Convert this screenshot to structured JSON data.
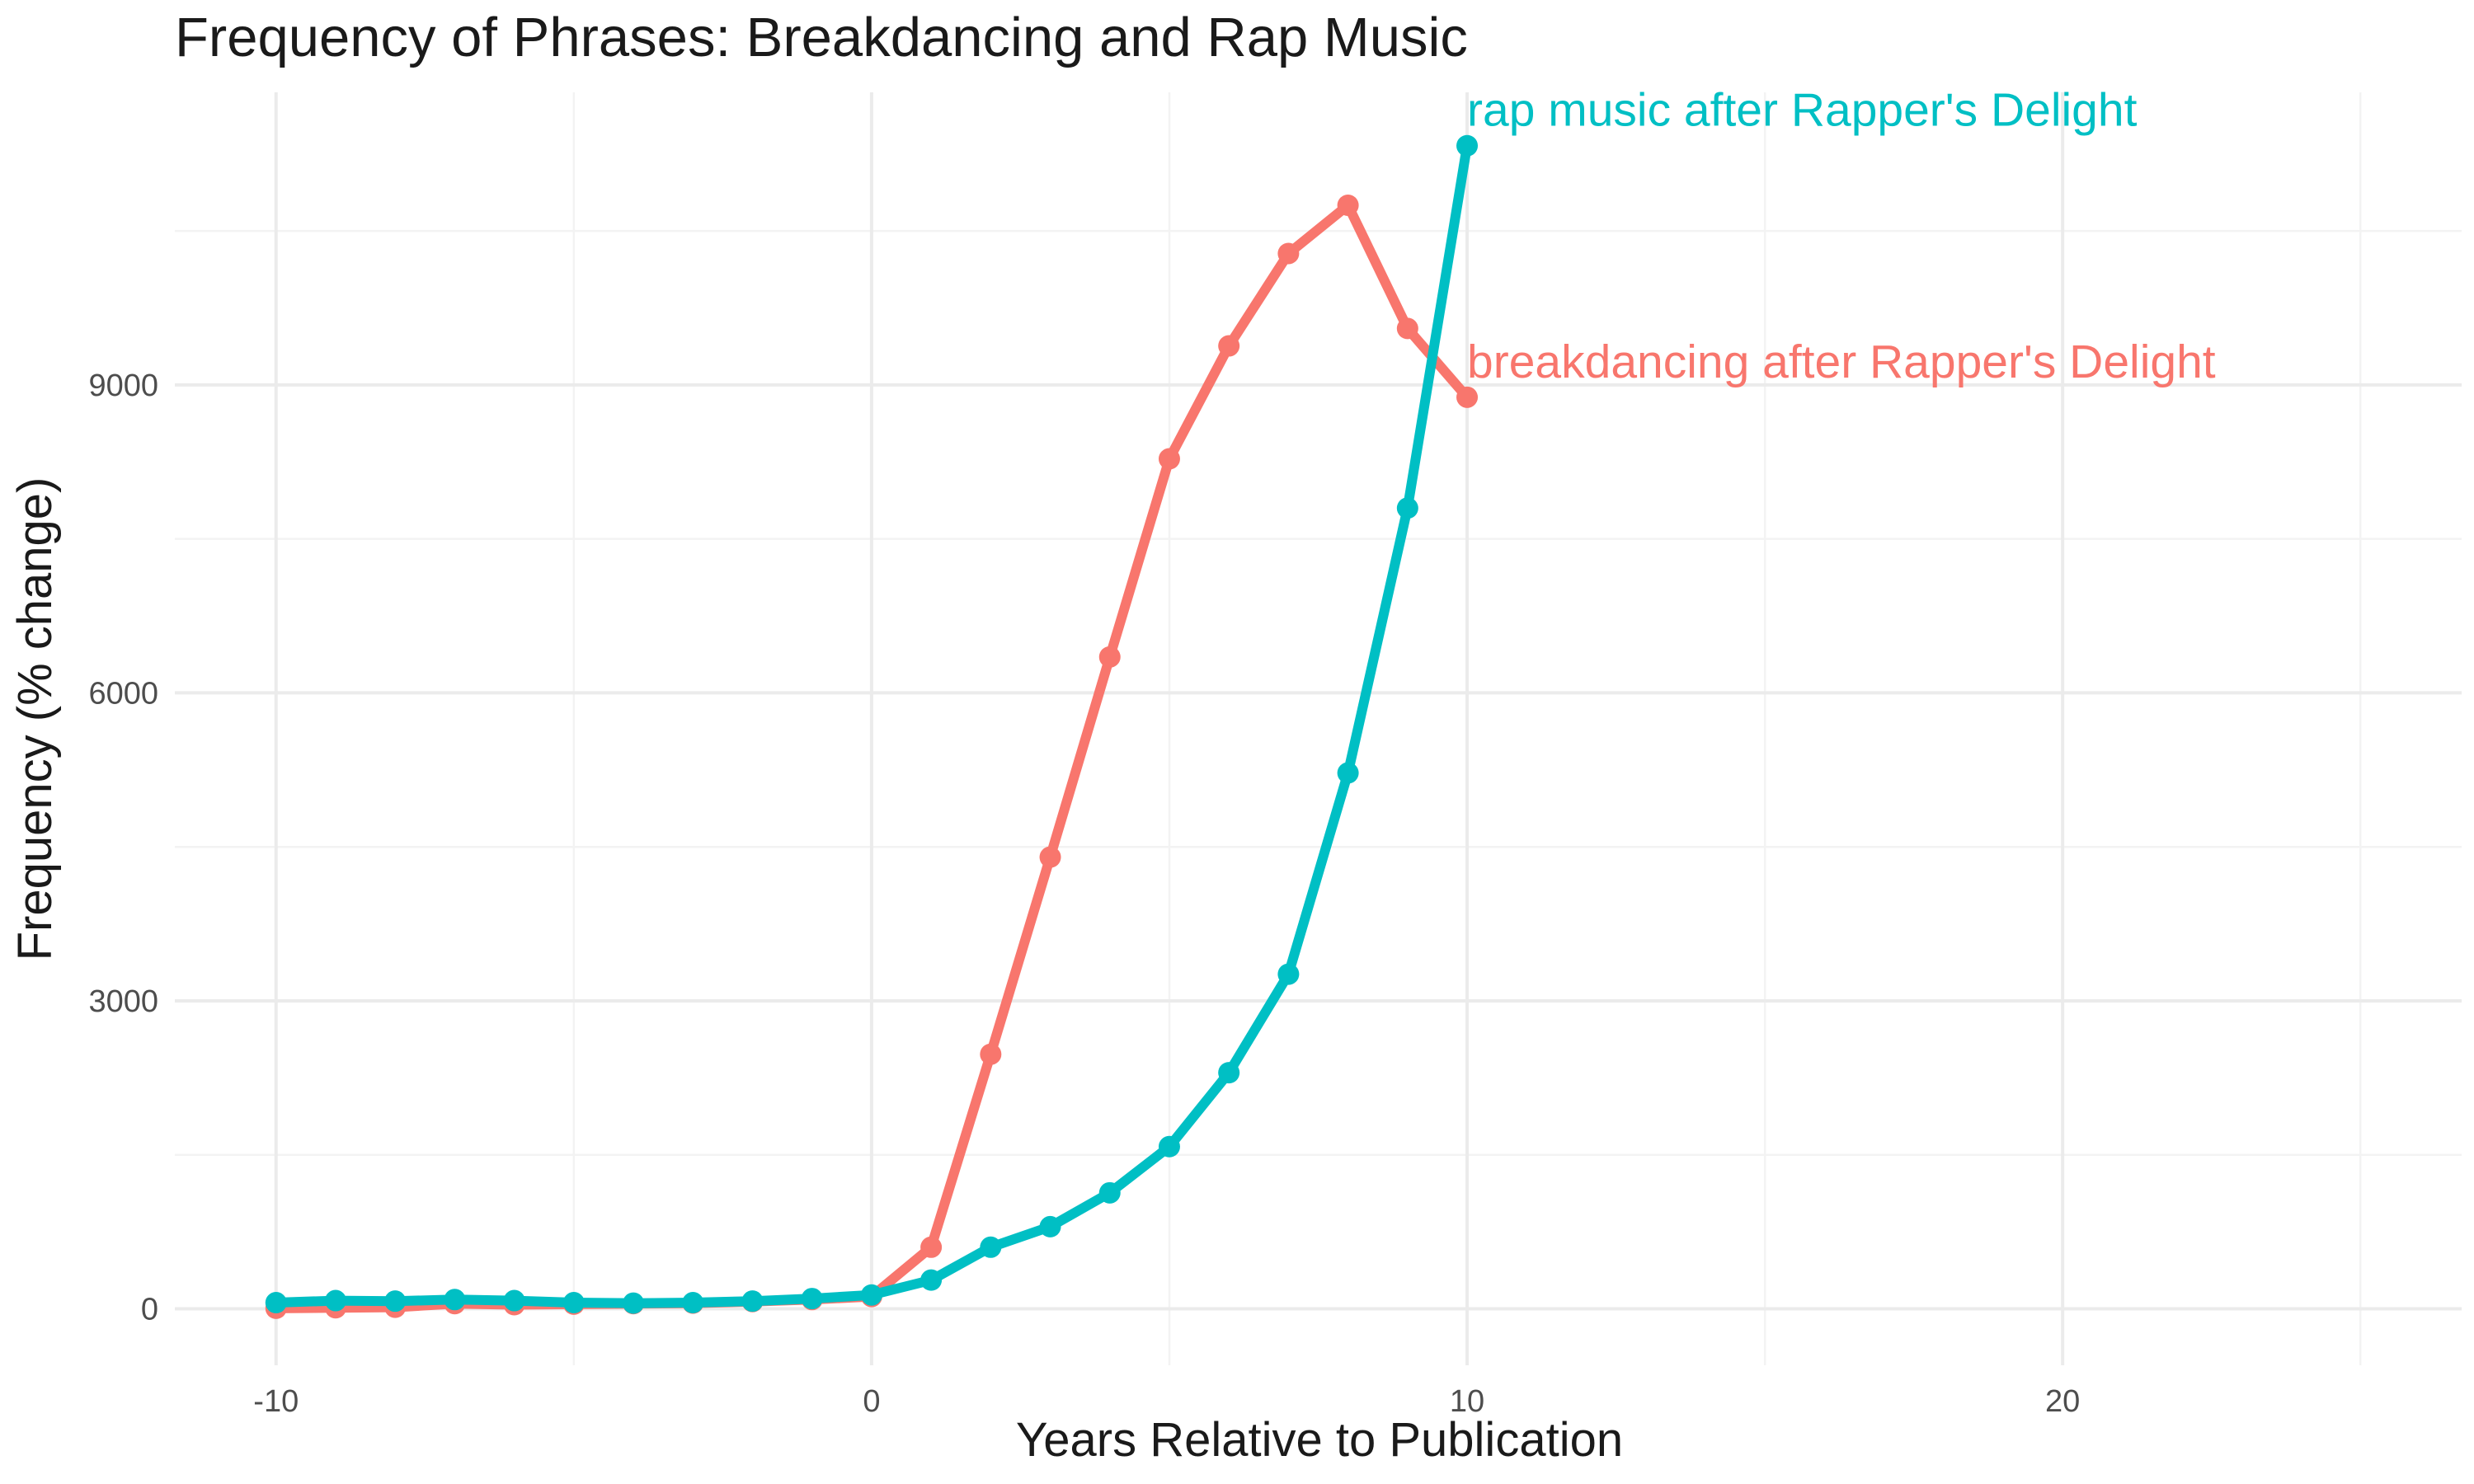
{
  "chart_data": {
    "type": "line",
    "title": "Frequency of Phrases: Breakdancing and Rap Music",
    "xlabel": "Years Relative to Publication",
    "ylabel": "Frequency (% change)",
    "xlim": [
      -11.7,
      26.7
    ],
    "ylim": [
      -550,
      11850
    ],
    "x_ticks": [
      -10,
      0,
      10,
      20
    ],
    "x_tick_labels": [
      "-10",
      "0",
      "10",
      "20"
    ],
    "x_minor_ticks": [
      -5,
      5,
      15,
      25
    ],
    "y_ticks": [
      0,
      3000,
      6000,
      9000
    ],
    "y_tick_labels": [
      "0",
      "3000",
      "6000",
      "9000"
    ],
    "y_minor_ticks": [
      1500,
      4500,
      7500,
      10500
    ],
    "grid": true,
    "legend": "none",
    "x": [
      -10,
      -9,
      -8,
      -7,
      -6,
      -5,
      -4,
      -3,
      -2,
      -1,
      0,
      1,
      2,
      3,
      4,
      5,
      6,
      7,
      8,
      9,
      10
    ],
    "series": [
      {
        "name": "breakdancing after Rapper's Delight",
        "color": "#F8766D",
        "values": [
          5,
          10,
          15,
          50,
          40,
          45,
          50,
          55,
          70,
          90,
          120,
          600,
          2480,
          4400,
          6350,
          8280,
          9380,
          10280,
          10750,
          9550,
          8880
        ]
      },
      {
        "name": "rap music after Rapper's Delight",
        "color": "#00BFC4",
        "values": [
          60,
          80,
          75,
          90,
          80,
          60,
          55,
          60,
          75,
          100,
          135,
          280,
          600,
          800,
          1130,
          1580,
          2300,
          3260,
          5220,
          7800,
          11330
        ]
      }
    ]
  }
}
